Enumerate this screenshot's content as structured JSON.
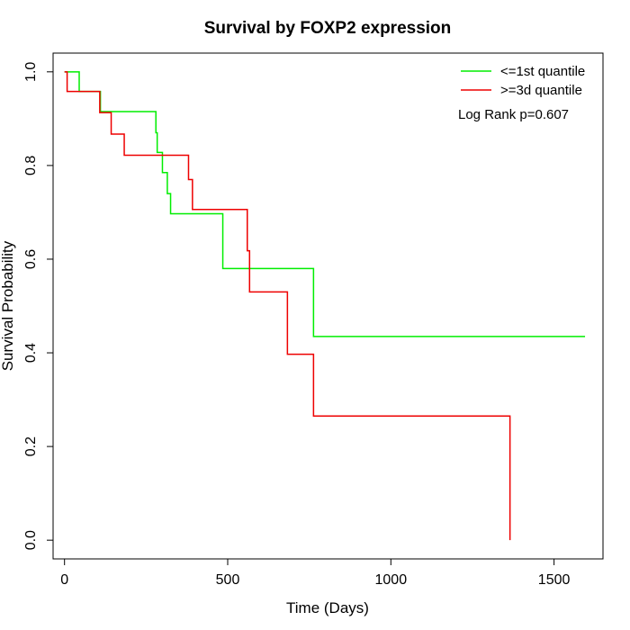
{
  "chart_data": {
    "type": "line",
    "step": true,
    "title": "Survival by FOXP2 expression",
    "xlabel": "Time (Days)",
    "ylabel": "Survival Probability",
    "xlim": [
      -35,
      1650
    ],
    "ylim": [
      -0.04,
      1.04
    ],
    "xticks": [
      0,
      500,
      1000,
      1500
    ],
    "yticks": [
      0.0,
      0.2,
      0.4,
      0.6,
      0.8,
      1.0
    ],
    "xtick_labels": [
      "0",
      "500",
      "1000",
      "1500"
    ],
    "ytick_labels": [
      "0.0",
      "0.2",
      "0.4",
      "0.6",
      "0.8",
      "1.0"
    ],
    "grid": false,
    "legend_position": "top-right",
    "annotation": "Log Rank p=0.607",
    "series": [
      {
        "name": "<=1st quantile",
        "color": "#00ee00",
        "x": [
          0,
          45,
          110,
          280,
          284,
          300,
          315,
          325,
          485,
          763,
          1595
        ],
        "y": [
          1.0,
          0.958,
          0.915,
          0.87,
          0.828,
          0.785,
          0.74,
          0.697,
          0.58,
          0.435,
          0.435
        ]
      },
      {
        "name": ">=3d quantile",
        "color": "#ee0000",
        "x": [
          0,
          8,
          108,
          143,
          183,
          380,
          392,
          560,
          567,
          580,
          683,
          763,
          1365
        ],
        "y": [
          1.0,
          0.958,
          0.913,
          0.867,
          0.822,
          0.77,
          0.706,
          0.618,
          0.53,
          0.53,
          0.397,
          0.265,
          0.0
        ]
      }
    ]
  }
}
